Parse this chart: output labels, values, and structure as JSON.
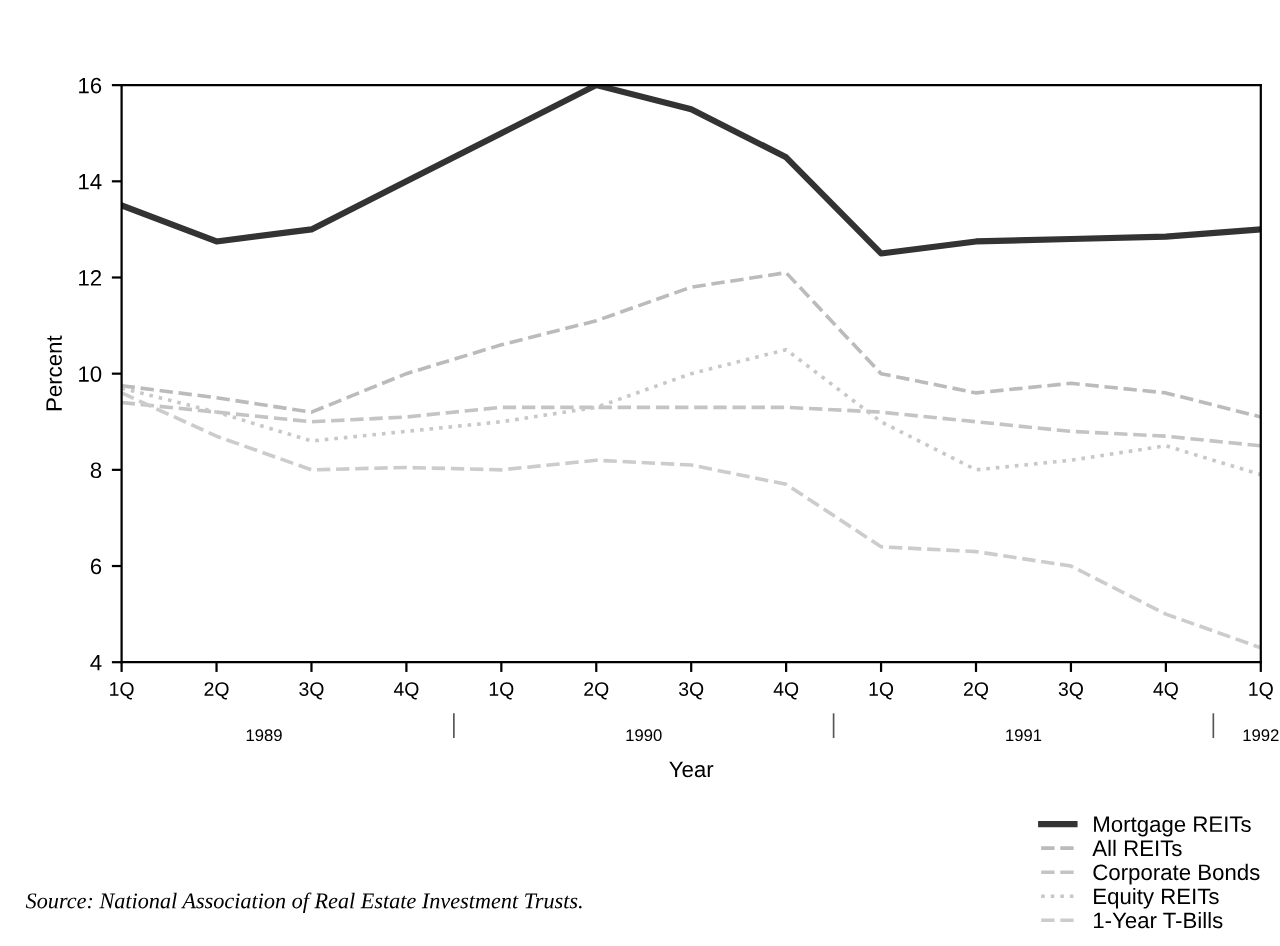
{
  "chart_data": {
    "type": "line",
    "xlabel": "Year",
    "ylabel": "Percent",
    "categories": [
      "1Q",
      "2Q",
      "3Q",
      "4Q",
      "1Q",
      "2Q",
      "3Q",
      "4Q",
      "1Q",
      "2Q",
      "3Q",
      "4Q",
      "1Q"
    ],
    "series": [
      {
        "name": "Mortgage REITs",
        "color": "#333333",
        "line_style": "solid",
        "values": [
          13.5,
          12.75,
          13.0,
          14.0,
          15.0,
          16.0,
          15.5,
          14.5,
          12.5,
          12.75,
          12.8,
          12.85,
          13.0
        ]
      },
      {
        "name": "All REITs",
        "color": "#bbbbbb",
        "line_style": "dashed",
        "values": [
          9.75,
          9.5,
          9.2,
          10.0,
          10.6,
          11.1,
          11.8,
          12.1,
          10.0,
          9.6,
          9.8,
          9.6,
          9.1
        ]
      },
      {
        "name": "Corporate Bonds",
        "color": "#c4c4c4",
        "line_style": "dashed",
        "values": [
          9.4,
          9.2,
          9.0,
          9.1,
          9.3,
          9.3,
          9.3,
          9.3,
          9.2,
          9.0,
          8.8,
          8.7,
          8.5
        ]
      },
      {
        "name": "Equity REITs",
        "color": "#c8c8c8",
        "line_style": "dotted",
        "values": [
          9.7,
          9.2,
          8.6,
          8.8,
          9.0,
          9.3,
          10.0,
          10.5,
          9.0,
          8.0,
          8.2,
          8.5,
          7.9
        ]
      },
      {
        "name": "1-Year T-Bills",
        "color": "#cccccc",
        "line_style": "dashed",
        "values": [
          9.6,
          8.7,
          8.0,
          8.05,
          8.0,
          8.2,
          8.1,
          7.7,
          6.4,
          6.3,
          6.0,
          5.0,
          4.3
        ]
      }
    ],
    "ylim": [
      4,
      16
    ],
    "yticks": [
      4,
      6,
      8,
      10,
      12,
      14,
      16
    ],
    "grid": false,
    "legend": "bottom right",
    "marker": "none",
    "annotations": [
      "1989",
      "1990",
      "1991",
      "1992",
      "Source: National Association of Real Estate Investment Trusts."
    ]
  }
}
